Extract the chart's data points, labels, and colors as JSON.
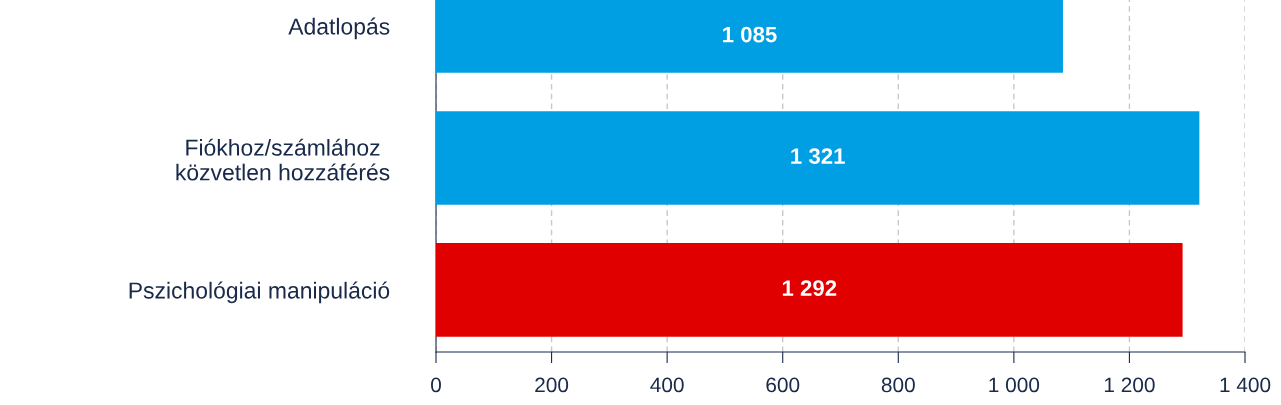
{
  "chart_data": {
    "type": "bar",
    "orientation": "horizontal",
    "categories": [
      "Adatlopás",
      "Fiókhoz/számlához\nközvetlen hozzáférés",
      "Pszichológiai manipuláció"
    ],
    "values": [
      1085,
      1321,
      1292
    ],
    "colors": [
      "#009fe3",
      "#009fe3",
      "#e00000"
    ],
    "value_labels": [
      "1 085",
      "1 321",
      "1 292"
    ],
    "xlim": [
      0,
      1400
    ],
    "xticks": [
      0,
      200,
      400,
      600,
      800,
      {
        "value": 1000,
        "label": "1 000"
      },
      {
        "value": 1200,
        "label": "1 200"
      },
      {
        "value": 1400,
        "label": "1 400"
      }
    ],
    "grid": "x"
  }
}
